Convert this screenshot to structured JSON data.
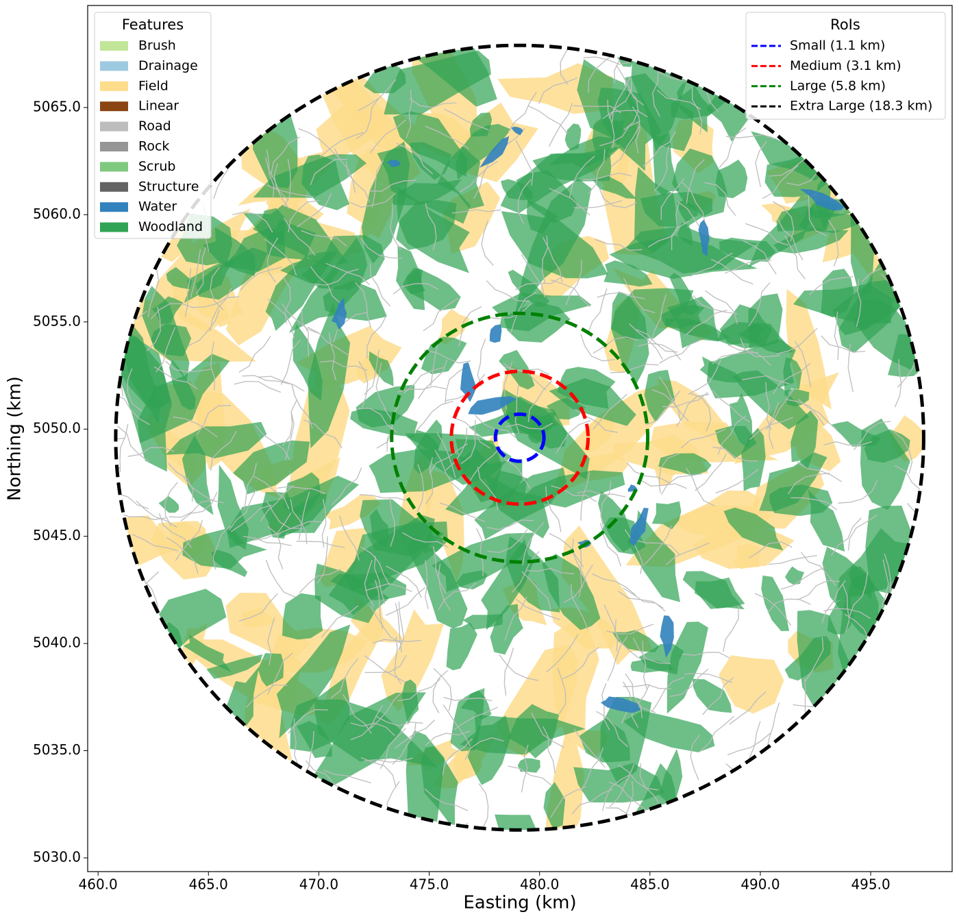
{
  "chart_data": {
    "type": "map",
    "xlabel": "Easting (km)",
    "ylabel": "Northing (km)",
    "xlim": [
      459.53,
      498.69
    ],
    "ylim": [
      5029.36,
      5069.76
    ],
    "xticks": [
      {
        "value": 460,
        "label": "460.0"
      },
      {
        "value": 465,
        "label": "465.0"
      },
      {
        "value": 470,
        "label": "470.0"
      },
      {
        "value": 475,
        "label": "475.0"
      },
      {
        "value": 480,
        "label": "480.0"
      },
      {
        "value": 485,
        "label": "485.0"
      },
      {
        "value": 490,
        "label": "490.0"
      },
      {
        "value": 495,
        "label": "495.0"
      }
    ],
    "yticks": [
      {
        "value": 5030,
        "label": "5030.0"
      },
      {
        "value": 5035,
        "label": "5035.0"
      },
      {
        "value": 5040,
        "label": "5040.0"
      },
      {
        "value": 5045,
        "label": "5045.0"
      },
      {
        "value": 5050,
        "label": "5050.0"
      },
      {
        "value": 5055,
        "label": "5055.0"
      },
      {
        "value": 5060,
        "label": "5060.0"
      },
      {
        "value": 5065,
        "label": "5065.0"
      }
    ],
    "features_legend": {
      "title": "Features",
      "items": [
        {
          "name": "Brush",
          "color": "#c2e699"
        },
        {
          "name": "Drainage",
          "color": "#9ecae1"
        },
        {
          "name": "Field",
          "color": "#fddc8c"
        },
        {
          "name": "Linear",
          "color": "#8b4513"
        },
        {
          "name": "Road",
          "color": "#bdbdbd"
        },
        {
          "name": "Rock",
          "color": "#969696"
        },
        {
          "name": "Scrub",
          "color": "#7fc97f"
        },
        {
          "name": "Structure",
          "color": "#636363"
        },
        {
          "name": "Water",
          "color": "#3182bd"
        },
        {
          "name": "Woodland",
          "color": "#31a354"
        }
      ]
    },
    "rois_legend": {
      "title": "RoIs",
      "center": [
        479.1,
        5049.6
      ],
      "items": [
        {
          "name": "Small (1.1 km)",
          "radius": 1.1,
          "color": "#0000ff"
        },
        {
          "name": "Medium (3.1 km)",
          "radius": 3.1,
          "color": "#ff0000"
        },
        {
          "name": "Large (5.8 km)",
          "radius": 5.8,
          "color": "#008000"
        },
        {
          "name": "Extra Large (18.3 km)",
          "radius": 18.3,
          "color": "#000000"
        }
      ]
    }
  }
}
